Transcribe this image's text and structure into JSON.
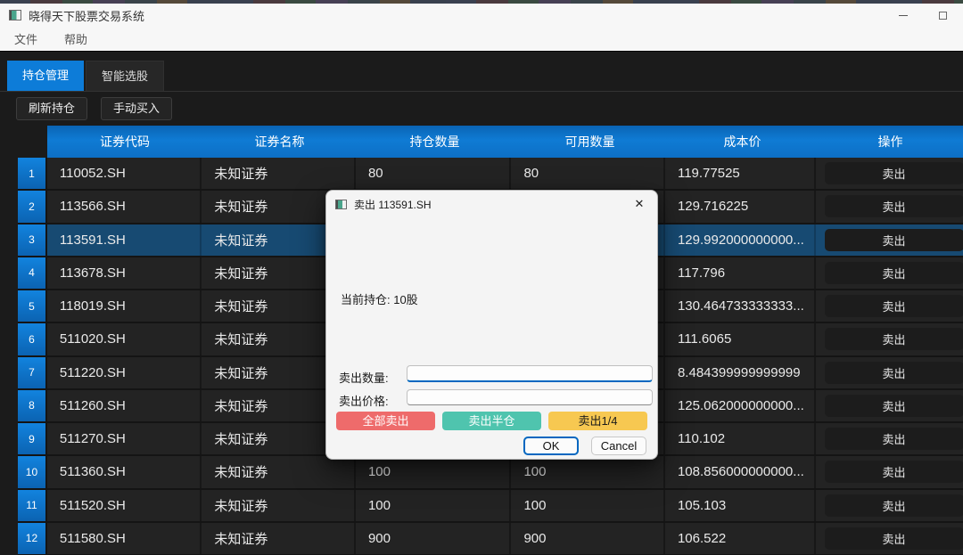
{
  "window": {
    "title": "晓得天下股票交易系统"
  },
  "menu": {
    "items": [
      {
        "label": "文件"
      },
      {
        "label": "帮助"
      }
    ]
  },
  "tabs": [
    {
      "label": "持仓管理",
      "active": true
    },
    {
      "label": "智能选股",
      "active": false
    }
  ],
  "toolbar": {
    "refresh_label": "刷新持仓",
    "manual_buy_label": "手动买入"
  },
  "table": {
    "headers": [
      "证券代码",
      "证券名称",
      "持仓数量",
      "可用数量",
      "成本价",
      "操作"
    ],
    "sell_label": "卖出",
    "rows": [
      {
        "num": "1",
        "code": "110052.SH",
        "name": "未知证券",
        "qty": "80",
        "avail": "80",
        "cost": "119.77525",
        "selected": false
      },
      {
        "num": "2",
        "code": "113566.SH",
        "name": "未知证券",
        "qty": "",
        "avail": "",
        "cost": "129.716225",
        "selected": false
      },
      {
        "num": "3",
        "code": "113591.SH",
        "name": "未知证券",
        "qty": "",
        "avail": "",
        "cost": "129.992000000000...",
        "selected": true
      },
      {
        "num": "4",
        "code": "113678.SH",
        "name": "未知证券",
        "qty": "",
        "avail": "",
        "cost": "117.796",
        "selected": false
      },
      {
        "num": "5",
        "code": "118019.SH",
        "name": "未知证券",
        "qty": "",
        "avail": "",
        "cost": "130.464733333333...",
        "selected": false
      },
      {
        "num": "6",
        "code": "511020.SH",
        "name": "未知证券",
        "qty": "",
        "avail": "",
        "cost": "111.6065",
        "selected": false
      },
      {
        "num": "7",
        "code": "511220.SH",
        "name": "未知证券",
        "qty": "",
        "avail": "",
        "cost": "8.484399999999999",
        "selected": false
      },
      {
        "num": "8",
        "code": "511260.SH",
        "name": "未知证券",
        "qty": "",
        "avail": "",
        "cost": "125.062000000000...",
        "selected": false
      },
      {
        "num": "9",
        "code": "511270.SH",
        "name": "未知证券",
        "qty": "",
        "avail": "",
        "cost": "110.102",
        "selected": false
      },
      {
        "num": "10",
        "code": "511360.SH",
        "name": "未知证券",
        "qty": "100",
        "avail": "100",
        "cost": "108.856000000000...",
        "selected": false
      },
      {
        "num": "11",
        "code": "511520.SH",
        "name": "未知证券",
        "qty": "100",
        "avail": "100",
        "cost": "105.103",
        "selected": false
      },
      {
        "num": "12",
        "code": "511580.SH",
        "name": "未知证券",
        "qty": "900",
        "avail": "900",
        "cost": "106.522",
        "selected": false
      }
    ]
  },
  "dialog": {
    "title": "卖出 113591.SH",
    "close_glyph": "✕",
    "position_text": "当前持仓: 10股",
    "qty_label": "卖出数量:",
    "price_label": "卖出价格:",
    "qty_value": "",
    "price_value": "",
    "sell_all_label": "全部卖出",
    "sell_half_label": "卖出半仓",
    "sell_quarter_label": "卖出1/4",
    "ok_label": "OK",
    "cancel_label": "Cancel"
  },
  "colors": {
    "accent_blue": "#0d7cd8",
    "header_blue": "#0d6fc5",
    "selected_row_blue": "#174a72",
    "sell_all_red": "#ee6b6b",
    "sell_half_teal": "#4fc4ae",
    "sell_quarter_yellow": "#f7c851",
    "focus_blue": "#0067c0"
  }
}
